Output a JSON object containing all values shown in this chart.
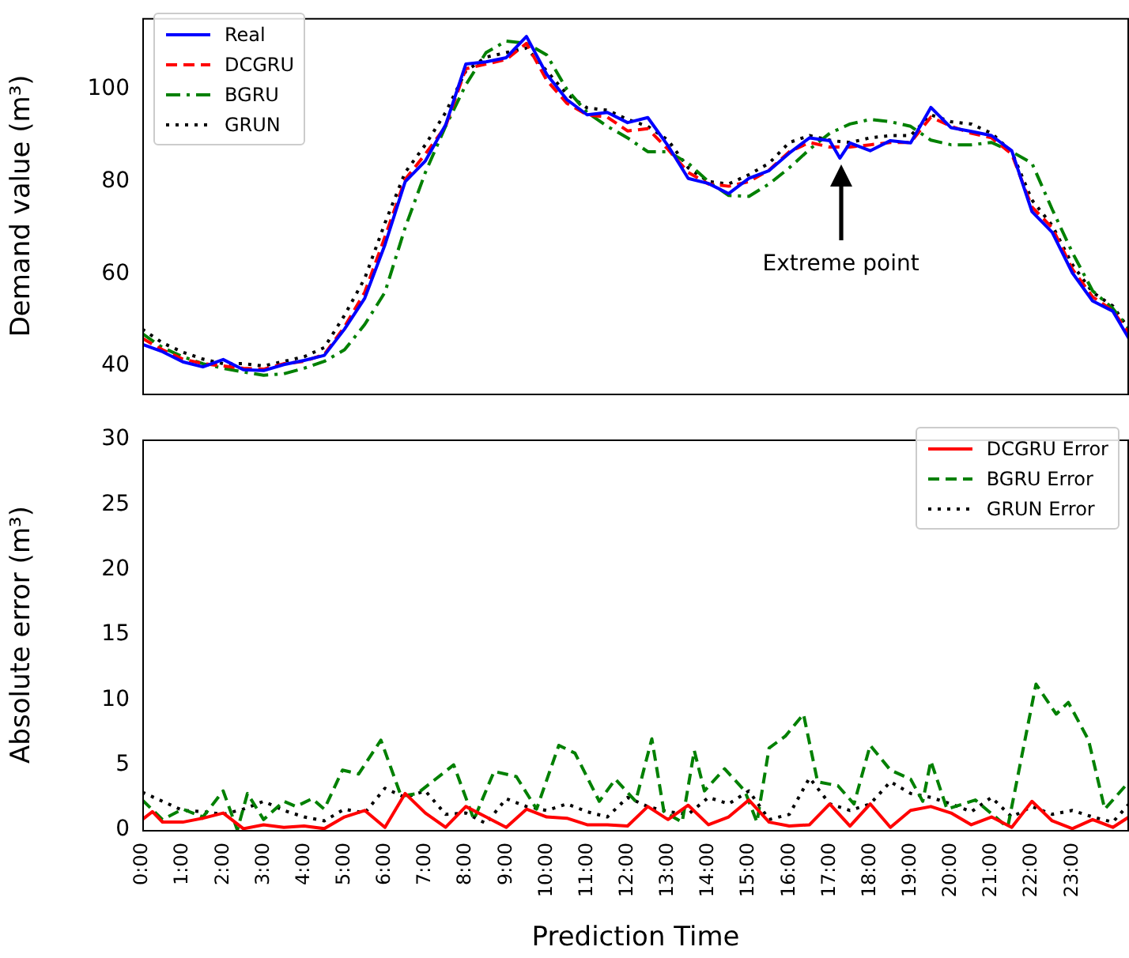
{
  "chart_data": [
    {
      "type": "line",
      "ylabel": "Demand value (m³)",
      "legend": "top left",
      "tick_labels": "y",
      "x": [
        0,
        0.5,
        1,
        1.5,
        2,
        2.5,
        3,
        3.5,
        4,
        4.5,
        5,
        5.5,
        6,
        6.5,
        7,
        7.5,
        8,
        8.5,
        9,
        9.5,
        10,
        10.5,
        11,
        11.5,
        12,
        12.5,
        13,
        13.5,
        14,
        14.5,
        15,
        15.5,
        16,
        16.5,
        17,
        17.25,
        17.5,
        18,
        18.5,
        19,
        19.5,
        20,
        20.5,
        21,
        21.5,
        22,
        22.5,
        23,
        23.5,
        24,
        24.4
      ],
      "series": [
        {
          "name": "Real",
          "color": "#0000ff",
          "line_style": "solid",
          "values": [
            44.7,
            43.1,
            40.9,
            39.8,
            41.4,
            39.2,
            39,
            40.3,
            41.2,
            42.3,
            48,
            54.7,
            66.3,
            80,
            84.5,
            92.3,
            105.5,
            106,
            106.9,
            111.5,
            103.3,
            97.8,
            94.5,
            95,
            92.8,
            93.9,
            87.8,
            80.7,
            79.6,
            77.4,
            80.7,
            82.4,
            86.2,
            89.5,
            88.9,
            85.1,
            88.4,
            86.7,
            88.9,
            88.4,
            96.1,
            91.7,
            90.9,
            90,
            86.7,
            73.5,
            69,
            60.2,
            54.1,
            51.9,
            45.9
          ]
        },
        {
          "name": "DCGRU",
          "color": "#ff0000",
          "line_style": "dashed",
          "values": [
            46,
            43.5,
            41.5,
            40.5,
            40,
            39.5,
            39.3,
            40.5,
            41,
            42.5,
            48.5,
            56,
            68,
            80.5,
            86,
            92,
            104.5,
            105.5,
            106.5,
            110,
            102,
            97,
            94.5,
            94,
            91,
            91.5,
            87,
            82,
            79.5,
            79,
            80,
            82.5,
            86.5,
            88.5,
            87.5,
            87.5,
            87.5,
            88,
            88.5,
            88.5,
            94,
            92,
            90.5,
            89.5,
            86,
            74.5,
            70,
            61,
            55,
            52,
            47
          ]
        },
        {
          "name": "BGRU",
          "color": "#008000",
          "line_style": "dashdot",
          "values": [
            47,
            44,
            42,
            40.5,
            39.5,
            38.7,
            38,
            38.3,
            39.5,
            41,
            43.5,
            49,
            56,
            70,
            82,
            92,
            101,
            108,
            110.5,
            110,
            107.5,
            100,
            95,
            92,
            89.5,
            86.5,
            86.5,
            84,
            80,
            77,
            76.8,
            79.5,
            83,
            87,
            90.5,
            91.5,
            92.5,
            93.5,
            93,
            92,
            89,
            88,
            88,
            88.5,
            86.5,
            84,
            74,
            64.6,
            56.3,
            52.5,
            48
          ]
        },
        {
          "name": "GRUN",
          "color": "#000000",
          "line_style": "dotted",
          "values": [
            48,
            45,
            43,
            41.5,
            40.5,
            40.5,
            40,
            41,
            42,
            44,
            51,
            59,
            71,
            82,
            88,
            95,
            104,
            107,
            108,
            109,
            104,
            99,
            96,
            95.5,
            93.5,
            92,
            89,
            83,
            80,
            79.5,
            81.5,
            84,
            88.5,
            90,
            89,
            88.7,
            88.5,
            89.5,
            90,
            90,
            94.5,
            93,
            92.5,
            90.5,
            86.5,
            76,
            70.5,
            62,
            56,
            53,
            48
          ]
        }
      ],
      "xlim": [
        0,
        24.4
      ],
      "ylim": [
        34,
        115.5
      ],
      "yticks": [
        40,
        60,
        80,
        100
      ],
      "annotations": [
        "Extreme point"
      ]
    },
    {
      "type": "line",
      "ylabel": "Absolute error (m³)",
      "xlabel": "Prediction Time",
      "legend": "top right",
      "series": [
        {
          "name": "DCGRU Error",
          "color": "#ff0000",
          "line_style": "solid",
          "x": [
            0,
            0.25,
            0.5,
            1,
            1.5,
            2,
            2.5,
            3,
            3.5,
            4,
            4.5,
            5,
            5.5,
            6,
            6.5,
            7,
            7.5,
            8,
            8.5,
            9,
            9.5,
            10,
            10.5,
            11,
            11.5,
            12,
            12.5,
            13,
            13.5,
            14,
            14.5,
            15,
            15.5,
            16,
            16.5,
            17,
            17.5,
            18,
            18.5,
            19,
            19.5,
            20,
            20.5,
            21,
            21.5,
            22,
            22.5,
            23,
            23.5,
            24,
            24.4
          ],
          "values": [
            0.8,
            1.4,
            0.6,
            0.6,
            0.9,
            1.3,
            0.1,
            0.4,
            0.2,
            0.3,
            0.1,
            1,
            1.5,
            0.2,
            2.8,
            1.3,
            0.2,
            1.8,
            1,
            0.2,
            1.6,
            1,
            0.9,
            0.4,
            0.4,
            0.3,
            1.8,
            0.8,
            1.9,
            0.4,
            1,
            2.3,
            0.6,
            0.3,
            0.4,
            2,
            0.3,
            2,
            0.2,
            1.5,
            1.8,
            1.3,
            0.4,
            1,
            0.2,
            2.2,
            0.7,
            0.1,
            0.8,
            0.2,
            1
          ]
        },
        {
          "name": "BGRU Error",
          "color": "#008000",
          "line_style": "dashed",
          "x": [
            0,
            0.5,
            1,
            1.5,
            2,
            2.35,
            2.6,
            3,
            3.5,
            3.8,
            4.2,
            4.5,
            4.95,
            5.35,
            5.9,
            6.4,
            6.8,
            7.7,
            8.2,
            8.7,
            9.25,
            9.75,
            10.3,
            10.7,
            11.3,
            11.7,
            12.2,
            12.6,
            12.9,
            13.35,
            13.65,
            13.9,
            14.4,
            14.9,
            15.2,
            15.5,
            15.9,
            16.35,
            16.7,
            17.2,
            17.6,
            18,
            18.5,
            19,
            19.3,
            19.5,
            19.9,
            20.6,
            21.4,
            22.1,
            22.6,
            22.9,
            23.4,
            23.8,
            24.4
          ],
          "values": [
            2.3,
            0.8,
            1.6,
            1,
            3,
            0,
            2.8,
            0.8,
            2.2,
            1.8,
            2.4,
            1.6,
            4.6,
            4.3,
            6.9,
            2.6,
            2.8,
            5,
            0.8,
            4.5,
            4.1,
            1.6,
            6.5,
            5.9,
            2.2,
            3.9,
            2.2,
            7,
            1.4,
            0.6,
            6.1,
            3,
            4.7,
            3,
            0.6,
            6.3,
            7.2,
            8.9,
            3.7,
            3.4,
            2,
            6.5,
            4.6,
            3.9,
            2.2,
            5.3,
            1.6,
            2.3,
            0.2,
            11.2,
            8.9,
            9.8,
            6.9,
            1.6,
            3.7
          ]
        },
        {
          "name": "GRUN Error",
          "color": "#000000",
          "line_style": "dotted",
          "x": [
            0,
            0.5,
            1,
            1.5,
            2,
            2.5,
            3,
            3.5,
            4,
            4.5,
            5,
            5.5,
            6,
            6.5,
            7,
            7.5,
            8,
            8.5,
            9,
            9.5,
            10,
            10.5,
            11,
            11.5,
            12,
            12.5,
            13,
            13.5,
            14,
            14.5,
            15,
            15.5,
            16,
            16.5,
            17,
            17.5,
            18,
            18.5,
            19,
            19.5,
            20,
            20.5,
            21,
            21.5,
            22,
            22.5,
            23,
            23.5,
            24,
            24.4
          ],
          "values": [
            2.9,
            2.2,
            1.5,
            1.4,
            1.2,
            1.6,
            2.2,
            1.5,
            1,
            0.7,
            1.6,
            1.3,
            3.2,
            2.5,
            3,
            1.2,
            1.3,
            0.5,
            2.4,
            1.8,
            1.5,
            2,
            1.4,
            1,
            2.5,
            1.8,
            1.4,
            1.2,
            2.5,
            2,
            3,
            0.8,
            1.2,
            4,
            2,
            1.5,
            2,
            3.7,
            2.8,
            2.5,
            2,
            1.4,
            2.5,
            1,
            1.8,
            1.2,
            1.5,
            1,
            0.6,
            2
          ]
        }
      ],
      "xlim": [
        0,
        24.4
      ],
      "xticks": [
        {
          "value": 0,
          "label": "0:00"
        },
        {
          "value": 1,
          "label": "1:00"
        },
        {
          "value": 2,
          "label": "2:00"
        },
        {
          "value": 3,
          "label": "3:00"
        },
        {
          "value": 4,
          "label": "4:00"
        },
        {
          "value": 5,
          "label": "5:00"
        },
        {
          "value": 6,
          "label": "6:00"
        },
        {
          "value": 7,
          "label": "7:00"
        },
        {
          "value": 8,
          "label": "8:00"
        },
        {
          "value": 9,
          "label": "9:00"
        },
        {
          "value": 10,
          "label": "10:00"
        },
        {
          "value": 11,
          "label": "11:00"
        },
        {
          "value": 12,
          "label": "12:00"
        },
        {
          "value": 13,
          "label": "13:00"
        },
        {
          "value": 14,
          "label": "14:00"
        },
        {
          "value": 15,
          "label": "15:00"
        },
        {
          "value": 16,
          "label": "16:00"
        },
        {
          "value": 17,
          "label": "17:00"
        },
        {
          "value": 18,
          "label": "18:00"
        },
        {
          "value": 19,
          "label": "19:00"
        },
        {
          "value": 20,
          "label": "20:00"
        },
        {
          "value": 21,
          "label": "21:00"
        },
        {
          "value": 22,
          "label": "22:00"
        },
        {
          "value": 23,
          "label": "23:00"
        }
      ],
      "ylim": [
        0,
        30
      ],
      "yticks": [
        0,
        5,
        10,
        15,
        20,
        25,
        30
      ]
    }
  ]
}
